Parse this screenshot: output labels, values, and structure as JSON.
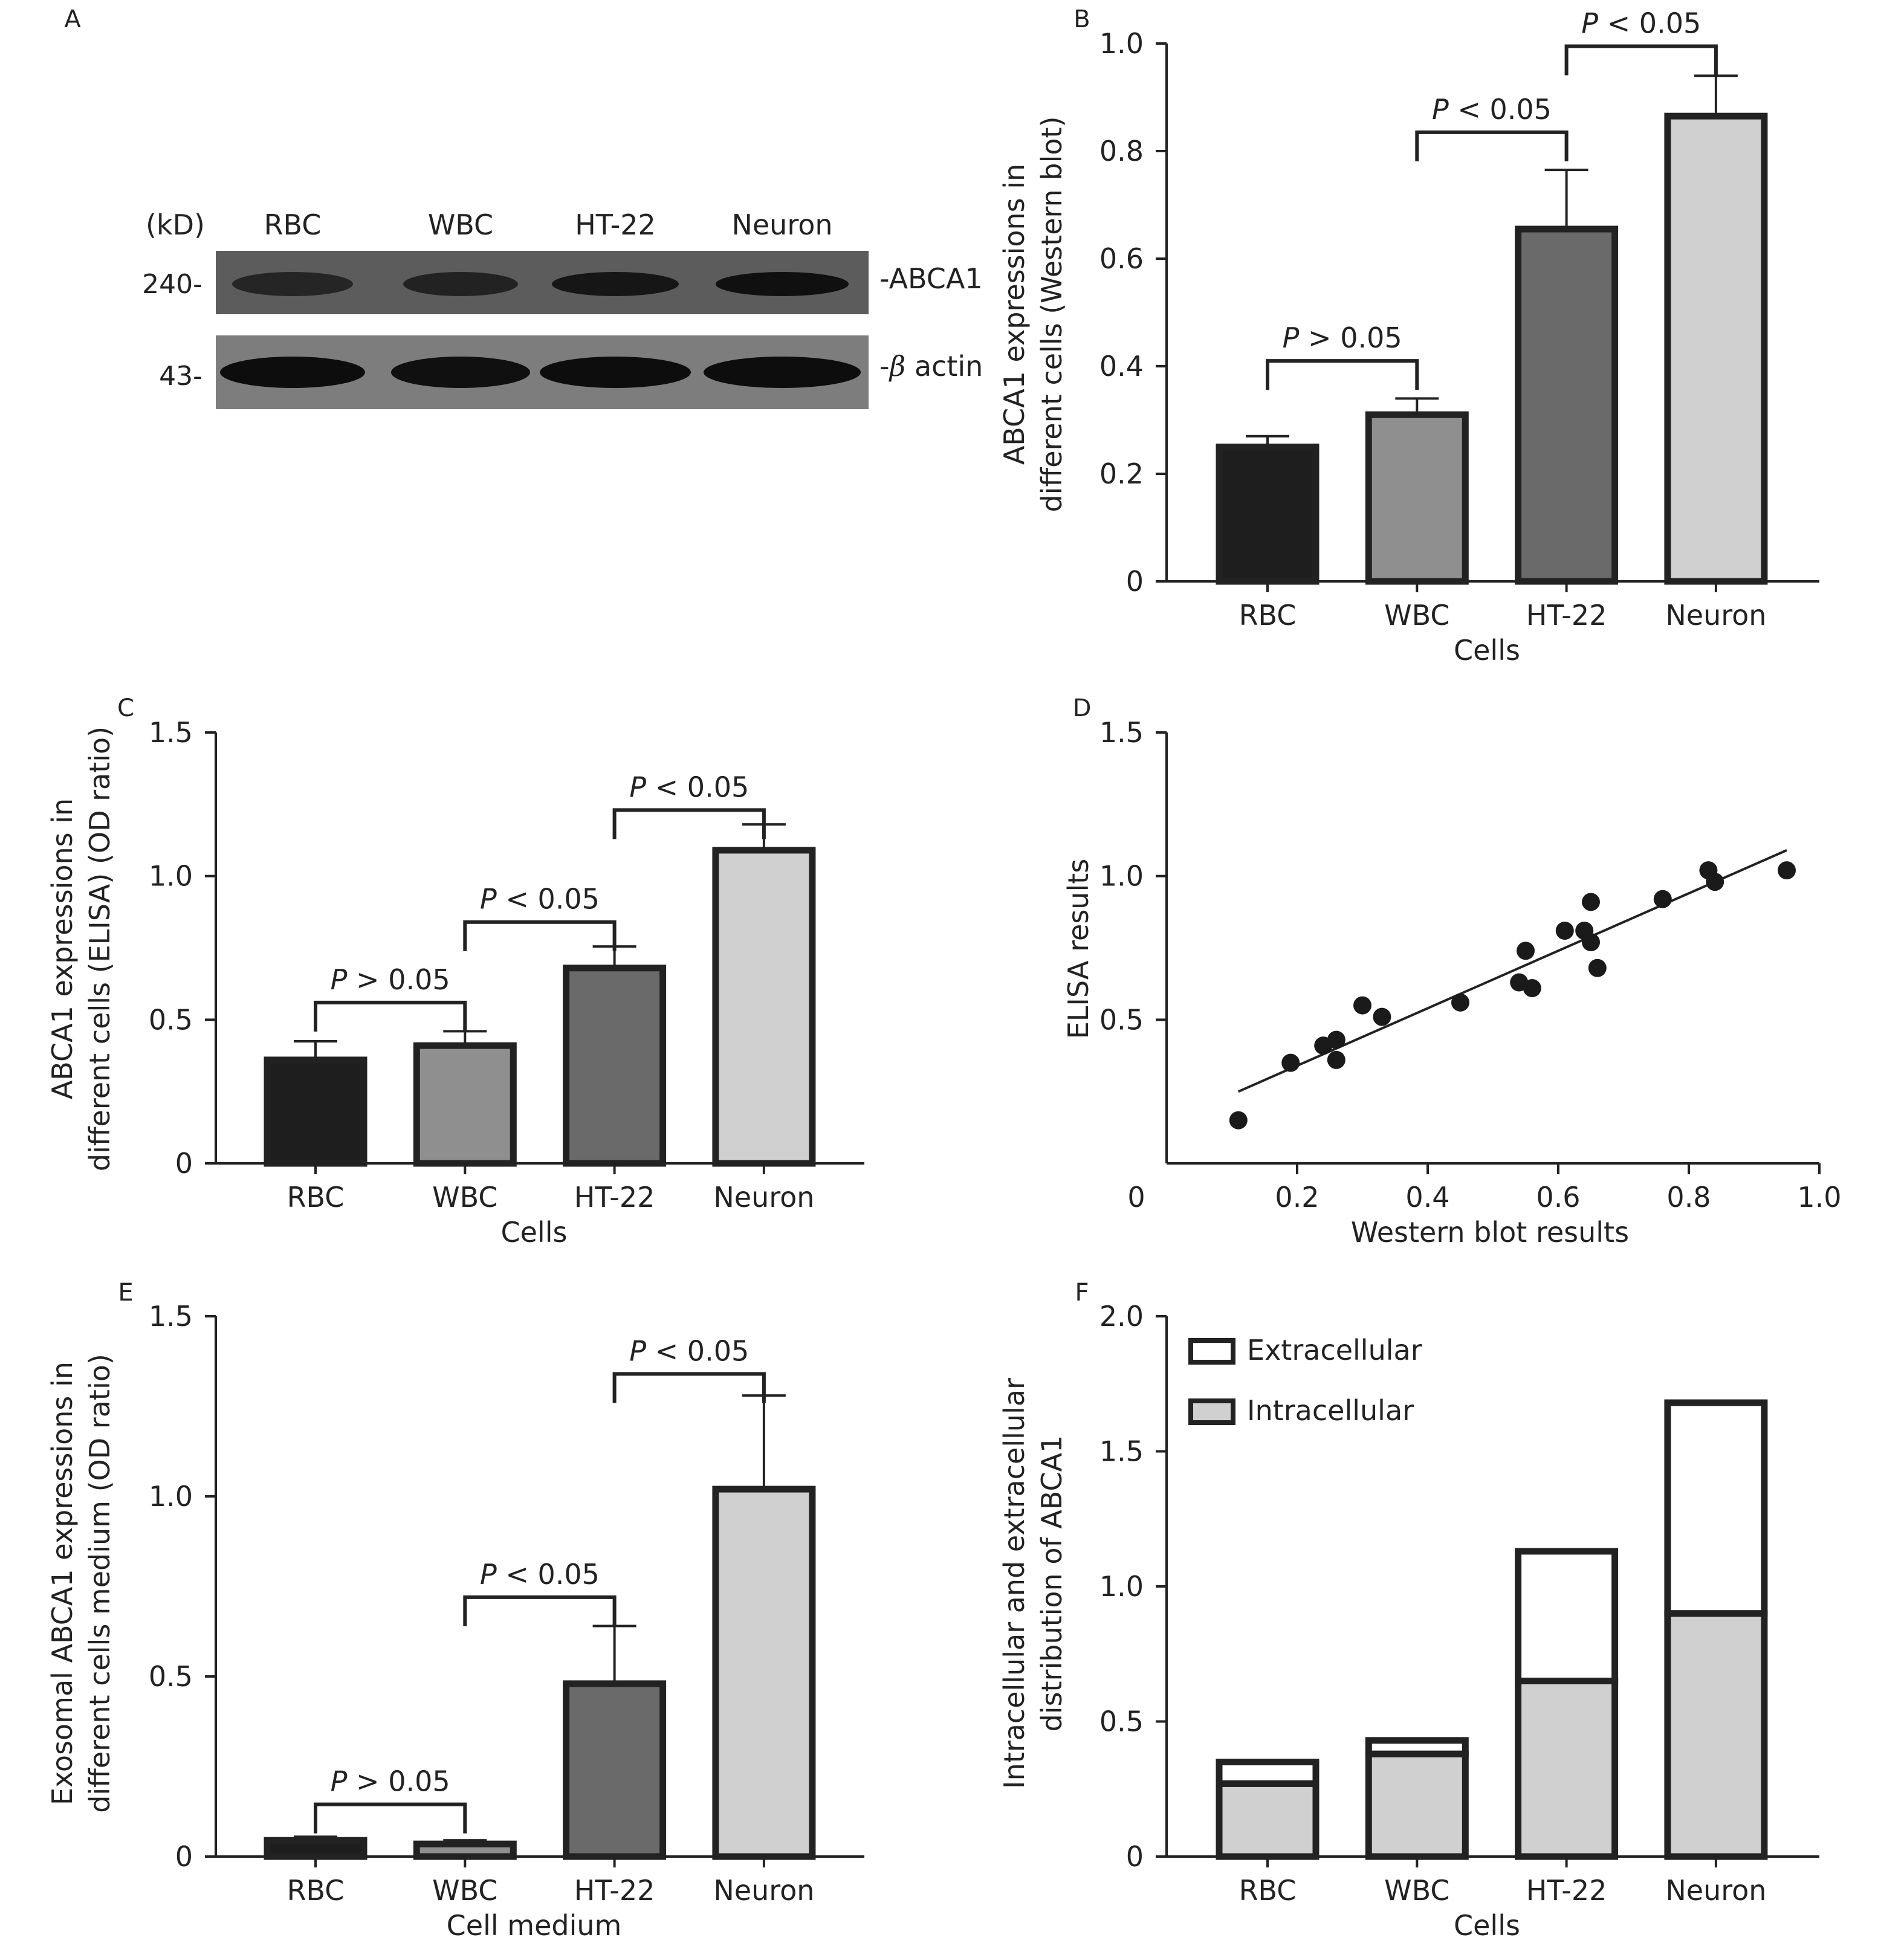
{
  "figure": {
    "panel_letters": [
      "A",
      "B",
      "C",
      "D",
      "E",
      "F"
    ]
  },
  "western_blot": {
    "panel": "A",
    "unit_label": "(kD)",
    "lanes": [
      "RBC",
      "WBC",
      "HT-22",
      "Neuron"
    ],
    "bands": [
      {
        "marker": "240-",
        "name": "-ABCA1",
        "intensity": [
          0.55,
          0.6,
          0.8,
          0.9
        ]
      },
      {
        "marker": "43-",
        "name_prefix": "-",
        "name_symbol": "β",
        "name_text": " actin",
        "intensity": [
          0.95,
          0.9,
          0.95,
          0.95
        ]
      }
    ]
  },
  "chart_data": [
    {
      "panel": "B",
      "type": "bar",
      "categories": [
        "RBC",
        "WBC",
        "HT-22",
        "Neuron"
      ],
      "values": [
        0.25,
        0.31,
        0.655,
        0.865
      ],
      "errors": [
        0.02,
        0.03,
        0.11,
        0.075
      ],
      "colors": [
        "#1e1e1e",
        "#8f8f8f",
        "#6a6a6a",
        "#d0d0d0"
      ],
      "ylim": [
        0,
        1.0
      ],
      "yticks": [
        0,
        0.2,
        0.4,
        0.6,
        0.8,
        1.0
      ],
      "ytick_labels": [
        "0",
        "0.2",
        "0.4",
        "0.6",
        "0.8",
        "1.0"
      ],
      "xlabel": "Cells",
      "ylabel": [
        "ABCA1 expressions in",
        "different cells (Western blot)"
      ],
      "comparisons": [
        {
          "from": 0,
          "to": 1,
          "p_prefix": "P",
          "label": " > 0.05",
          "level": 0.41
        },
        {
          "from": 1,
          "to": 2,
          "p_prefix": "P",
          "label": " < 0.05",
          "level": 0.835
        },
        {
          "from": 2,
          "to": 3,
          "p_prefix": "P",
          "label": " < 0.05",
          "level": 0.995
        }
      ]
    },
    {
      "panel": "C",
      "type": "bar",
      "categories": [
        "RBC",
        "WBC",
        "HT-22",
        "Neuron"
      ],
      "values": [
        0.36,
        0.41,
        0.68,
        1.09
      ],
      "errors": [
        0.065,
        0.05,
        0.075,
        0.09
      ],
      "colors": [
        "#1e1e1e",
        "#8f8f8f",
        "#6a6a6a",
        "#d0d0d0"
      ],
      "ylim": [
        0,
        1.5
      ],
      "yticks": [
        0,
        0.5,
        1.0,
        1.5
      ],
      "ytick_labels": [
        "0",
        "0.5",
        "1.0",
        "1.5"
      ],
      "xlabel": "Cells",
      "ylabel": [
        "ABCA1 expressions in",
        "different cells (ELISA) (OD ratio)"
      ],
      "comparisons": [
        {
          "from": 0,
          "to": 1,
          "p_prefix": "P",
          "label": " > 0.05",
          "level": 0.56
        },
        {
          "from": 1,
          "to": 2,
          "p_prefix": "P",
          "label": " < 0.05",
          "level": 0.84
        },
        {
          "from": 2,
          "to": 3,
          "p_prefix": "P",
          "label": " < 0.05",
          "level": 1.23
        }
      ]
    },
    {
      "panel": "D",
      "type": "scatter",
      "x": [
        0.11,
        0.19,
        0.24,
        0.26,
        0.26,
        0.3,
        0.33,
        0.45,
        0.54,
        0.55,
        0.56,
        0.61,
        0.64,
        0.65,
        0.65,
        0.66,
        0.76,
        0.83,
        0.84,
        0.95
      ],
      "y": [
        0.15,
        0.35,
        0.41,
        0.43,
        0.36,
        0.55,
        0.51,
        0.56,
        0.63,
        0.74,
        0.61,
        0.81,
        0.81,
        0.91,
        0.77,
        0.68,
        0.92,
        1.02,
        0.98,
        1.02
      ],
      "fit_line": {
        "x": [
          0.11,
          0.95
        ],
        "y": [
          0.25,
          1.09
        ]
      },
      "xlim": [
        0,
        1.0
      ],
      "ylim": [
        0,
        1.5
      ],
      "xticks": [
        0,
        0.2,
        0.4,
        0.6,
        0.8,
        1.0
      ],
      "xtick_labels": [
        "0",
        "0.2",
        "0.4",
        "0.6",
        "0.8",
        "1.0"
      ],
      "yticks": [
        0.5,
        1.0,
        1.5
      ],
      "ytick_labels": [
        "0.5",
        "1.0",
        "1.5"
      ],
      "xlabel": "Western blot results",
      "ylabel": [
        "ELISA results"
      ]
    },
    {
      "panel": "E",
      "type": "bar",
      "categories": [
        "RBC",
        "WBC",
        "HT-22",
        "Neuron"
      ],
      "values": [
        0.045,
        0.035,
        0.48,
        1.02
      ],
      "errors": [
        0.01,
        0.01,
        0.16,
        0.26
      ],
      "colors": [
        "#1e1e1e",
        "#8f8f8f",
        "#6a6a6a",
        "#d0d0d0"
      ],
      "ylim": [
        0,
        1.5
      ],
      "yticks": [
        0,
        0.5,
        1.0,
        1.5
      ],
      "ytick_labels": [
        "0",
        "0.5",
        "1.0",
        "1.5"
      ],
      "xlabel": "Cell medium",
      "ylabel": [
        "Exosomal ABCA1 expressions in",
        "different cells medium (OD ratio)"
      ],
      "comparisons": [
        {
          "from": 0,
          "to": 1,
          "p_prefix": "P",
          "label": " > 0.05",
          "level": 0.145
        },
        {
          "from": 1,
          "to": 2,
          "p_prefix": "P",
          "label": " < 0.05",
          "level": 0.72
        },
        {
          "from": 2,
          "to": 3,
          "p_prefix": "P",
          "label": " < 0.05",
          "level": 1.34
        }
      ]
    },
    {
      "panel": "F",
      "type": "bar",
      "stacked": true,
      "categories": [
        "RBC",
        "WBC",
        "HT-22",
        "Neuron"
      ],
      "series": [
        {
          "name": "Intracellular",
          "values": [
            0.27,
            0.38,
            0.65,
            0.9
          ],
          "color": "#d0d0d0"
        },
        {
          "name": "Extracellular",
          "values": [
            0.08,
            0.05,
            0.48,
            0.78
          ],
          "color": "#ffffff"
        }
      ],
      "legend_order": [
        "Extracellular",
        "Intracellular"
      ],
      "legend_position": "top-left",
      "ylim": [
        0,
        2.0
      ],
      "yticks": [
        0,
        0.5,
        1.0,
        1.5,
        2.0
      ],
      "ytick_labels": [
        "0",
        "0.5",
        "1.0",
        "1.5",
        "2.0"
      ],
      "xlabel": "Cells",
      "ylabel": [
        "Intracellular and extracellular",
        "distribution of ABCA1"
      ]
    }
  ]
}
